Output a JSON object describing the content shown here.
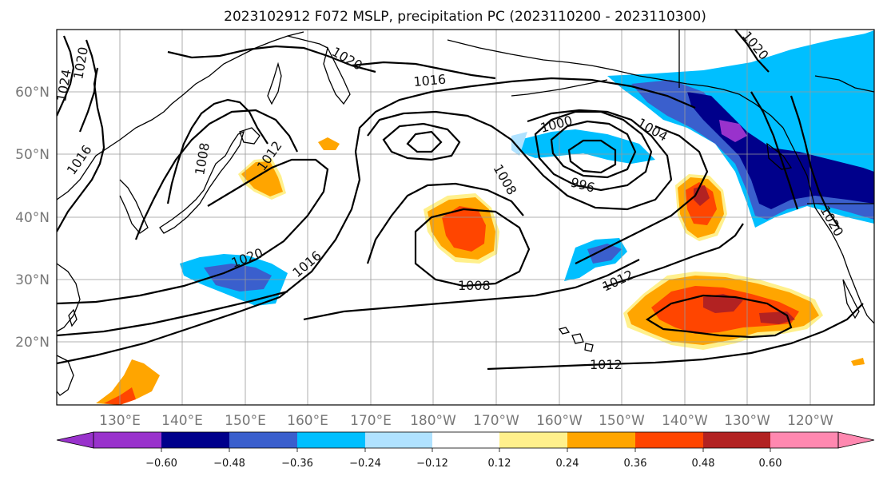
{
  "title": "2023102912 F072 MSLP, precipitation PC (2023110200 - 2023110300)",
  "lat_labels": [
    "60°N",
    "50°N",
    "40°N",
    "30°N",
    "20°N"
  ],
  "lon_labels": [
    "130°E",
    "140°E",
    "150°E",
    "160°E",
    "170°E",
    "180°W",
    "170°W",
    "160°W",
    "150°W",
    "140°W",
    "130°W",
    "120°W"
  ],
  "isobar_labels": [
    "1024",
    "1020",
    "1020",
    "1016",
    "1008",
    "1012",
    "1020",
    "1016",
    "1016",
    "1008",
    "1000",
    "1004",
    "996",
    "1008",
    "1012",
    "1012",
    "1020",
    "1020"
  ],
  "colorbar": {
    "ticks": [
      "−0.60",
      "−0.48",
      "−0.36",
      "−0.24",
      "−0.12",
      "0.12",
      "0.24",
      "0.36",
      "0.48",
      "0.60"
    ],
    "colors": [
      "#9932cc",
      "#00008b",
      "#3a5fcd",
      "#00bfff",
      "#b0e2ff",
      "#ffffff",
      "#fff08c",
      "#ffa500",
      "#ff4500",
      "#b22222",
      "#ff88b0"
    ]
  },
  "shading_colors": {
    "purple": "#9932cc",
    "navy": "#00008b",
    "blue": "#3a5fcd",
    "skyblue": "#00bfff",
    "lightblue": "#b0e2ff",
    "yellow": "#fff08c",
    "orange": "#ffa500",
    "redorange": "#ff4500",
    "firebrick": "#b22222"
  }
}
